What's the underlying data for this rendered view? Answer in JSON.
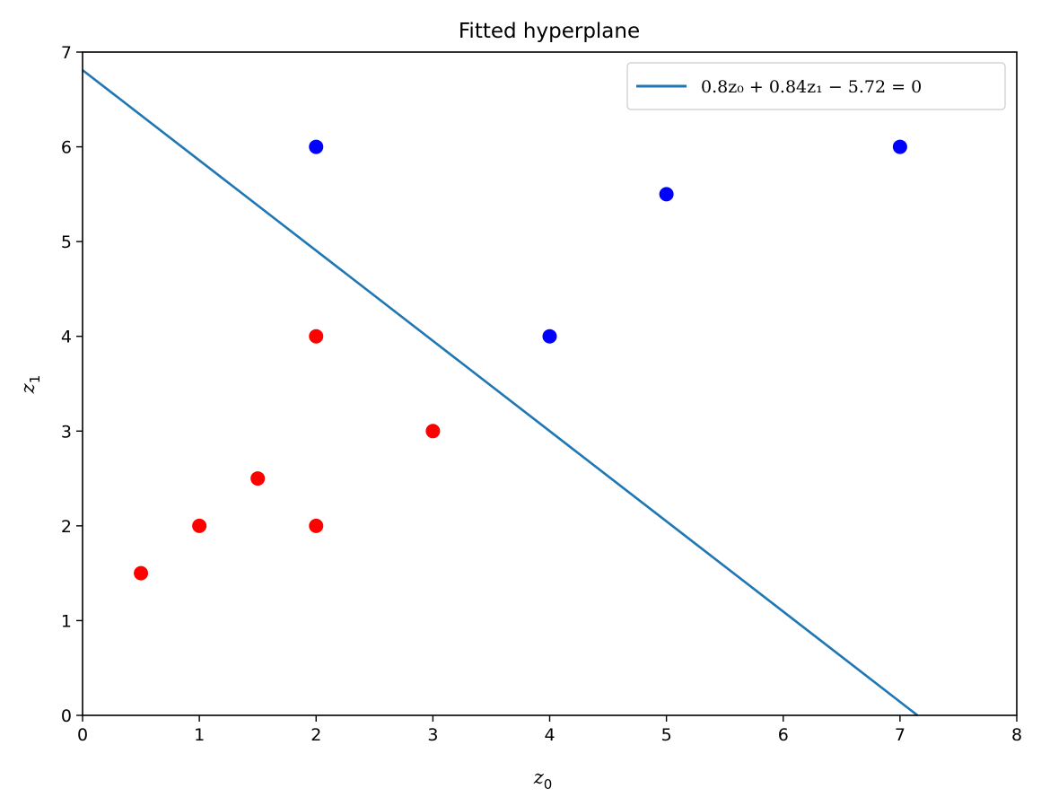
{
  "chart_data": {
    "type": "scatter",
    "title": "Fitted hyperplane",
    "xlabel": {
      "base": "z",
      "sub": "0"
    },
    "ylabel": {
      "base": "z",
      "sub": "1"
    },
    "xlim": [
      0,
      8
    ],
    "ylim": [
      0,
      7
    ],
    "xticks": [
      "0",
      "1",
      "2",
      "3",
      "4",
      "5",
      "6",
      "7",
      "8"
    ],
    "yticks": [
      "0",
      "1",
      "2",
      "3",
      "4",
      "5",
      "6",
      "7"
    ],
    "grid": false,
    "legend_placement": "top-right",
    "series": [
      {
        "color": "#ff0000",
        "points": [
          [
            0.5,
            1.5
          ],
          [
            1,
            2
          ],
          [
            1.5,
            2.5
          ],
          [
            2,
            2
          ],
          [
            2,
            4
          ],
          [
            3,
            3
          ]
        ]
      },
      {
        "color": "#0000ff",
        "points": [
          [
            2,
            6
          ],
          [
            4,
            4
          ],
          [
            5,
            5.5
          ],
          [
            7,
            6
          ]
        ]
      }
    ],
    "hyperplane": {
      "label": "0.8z₀ + 0.84z₁ − 5.72 = 0",
      "a": 0.8,
      "b": 0.84,
      "c": -5.72,
      "color": "#1f77b4"
    }
  }
}
